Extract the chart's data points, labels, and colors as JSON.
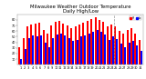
{
  "title": "Milwaukee Weather Outdoor Temperature\nDaily High/Low",
  "days": [
    1,
    2,
    3,
    4,
    5,
    6,
    7,
    8,
    9,
    10,
    11,
    12,
    13,
    14,
    15,
    16,
    17,
    18,
    19,
    20,
    21,
    22,
    23,
    24,
    25,
    26,
    27,
    28,
    29,
    30,
    31
  ],
  "highs": [
    32,
    48,
    68,
    72,
    74,
    75,
    62,
    55,
    70,
    76,
    78,
    74,
    70,
    65,
    68,
    72,
    75,
    78,
    82,
    84,
    80,
    76,
    68,
    72,
    68,
    60,
    55,
    62,
    65,
    55,
    45
  ],
  "lows": [
    10,
    28,
    48,
    52,
    50,
    52,
    40,
    32,
    48,
    54,
    56,
    52,
    48,
    42,
    44,
    50,
    52,
    55,
    58,
    62,
    58,
    54,
    44,
    50,
    46,
    38,
    32,
    40,
    42,
    35,
    25
  ],
  "high_color": "#ff0000",
  "low_color": "#0000ff",
  "bg_color": "#ffffff",
  "ylim": [
    0,
    90
  ],
  "yticks": [
    10,
    20,
    30,
    40,
    50,
    60,
    70,
    80
  ],
  "dashed_line_x": 24.5,
  "bar_width": 0.45,
  "legend_high": "Hi",
  "legend_low": "Lo",
  "title_fontsize": 3.8,
  "tick_fontsize": 2.5
}
